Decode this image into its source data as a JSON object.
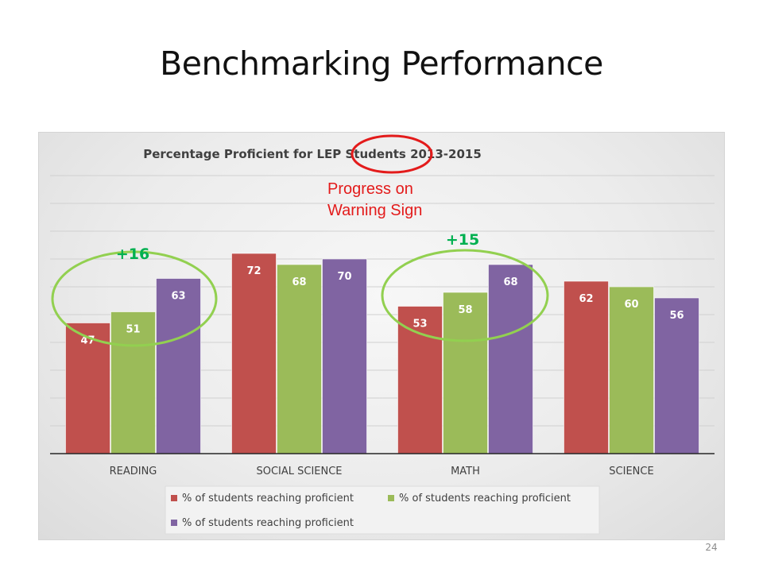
{
  "slide": {
    "title": "Benchmarking Performance",
    "page_number": "24"
  },
  "chart_data": {
    "type": "bar",
    "title": "Percentage Proficient for LEP Students 2013-2015",
    "categories": [
      "READING",
      "SOCIAL SCIENCE",
      "MATH",
      "SCIENCE"
    ],
    "series": [
      {
        "name": "% of students reaching proficient",
        "color": "#c0504d",
        "values": [
          47,
          72,
          53,
          62
        ]
      },
      {
        "name": "% of students reaching proficient",
        "color": "#9bbb59",
        "values": [
          51,
          68,
          58,
          60
        ]
      },
      {
        "name": "% of students reaching proficient",
        "color": "#8064a2",
        "values": [
          63,
          70,
          68,
          56
        ]
      }
    ],
    "ylim": [
      0,
      100
    ],
    "grid": true,
    "legend": "bottom",
    "data_labels": true,
    "annotations": {
      "reading_gain": "+16",
      "math_gain": "+15",
      "callout": [
        "Progress on",
        "Warning Sign"
      ]
    },
    "annotation_colors": {
      "gain_text": "#00b050",
      "circle": "#92d050",
      "callout": "#e31b1b"
    }
  }
}
